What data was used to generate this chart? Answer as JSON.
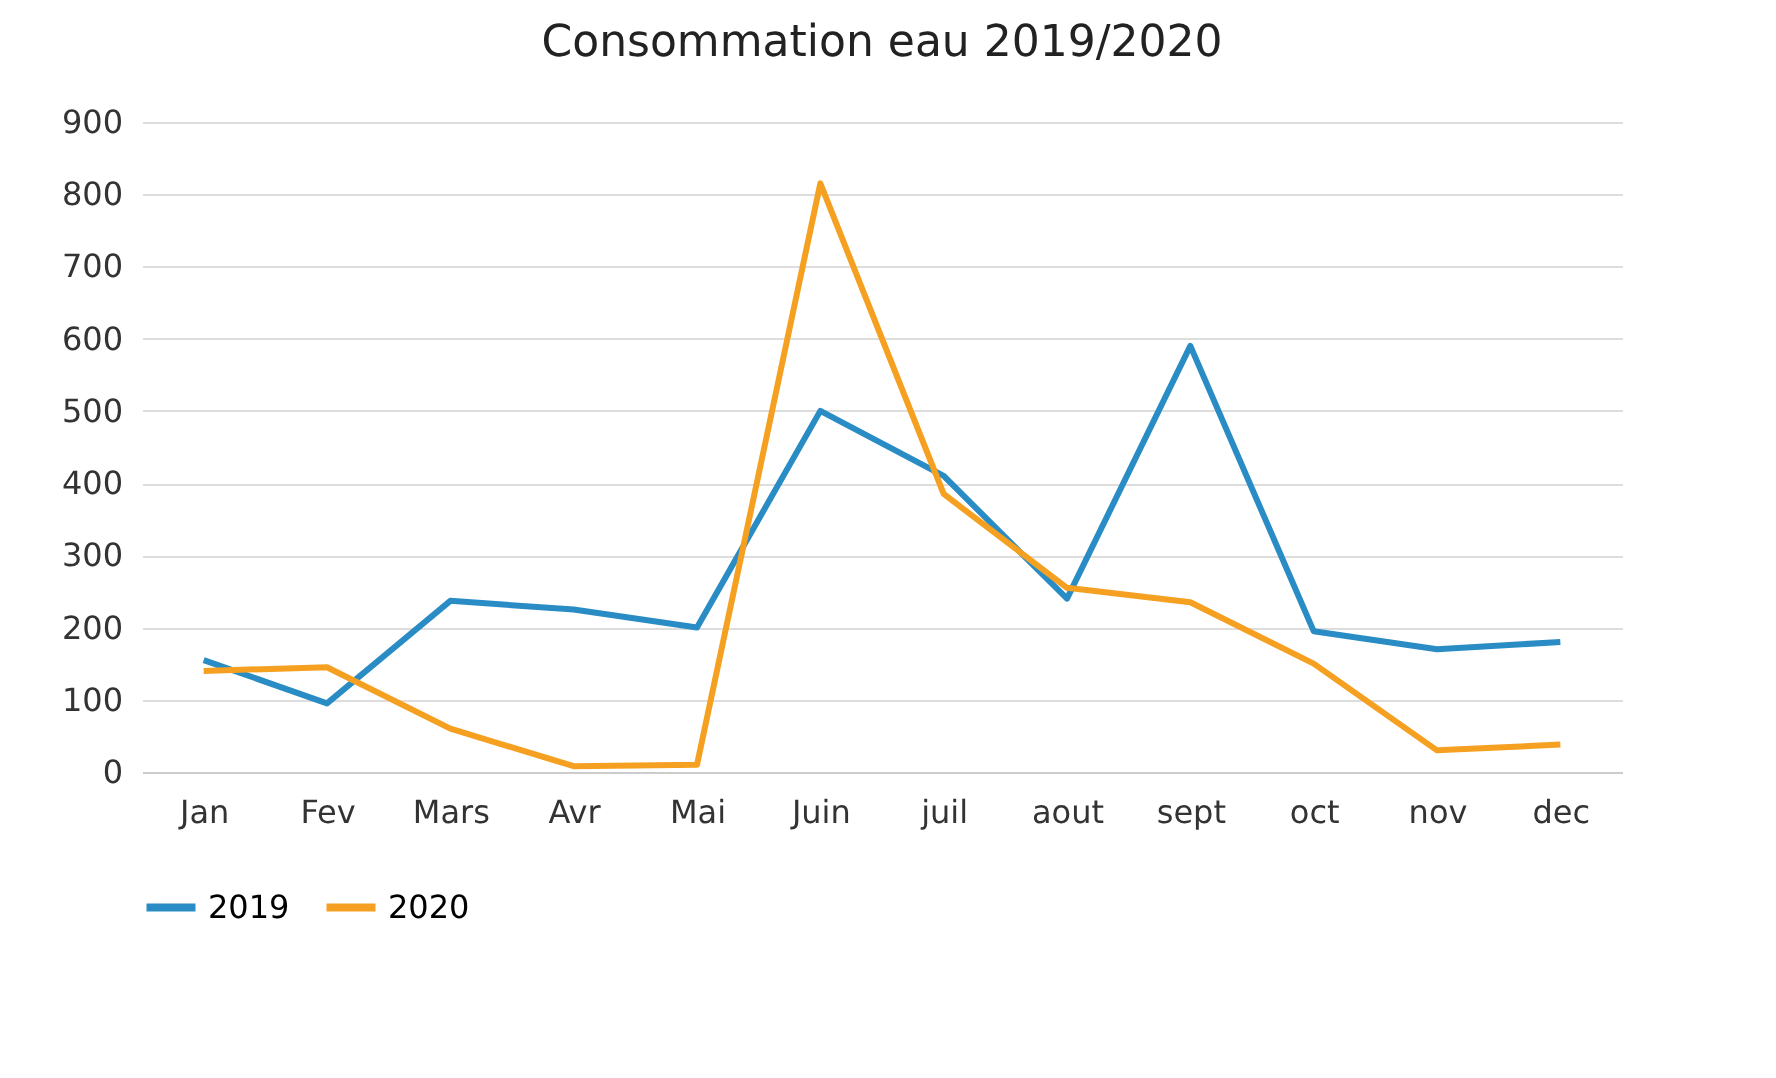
{
  "chart_data": {
    "type": "line",
    "title": "Consommation eau 2019/2020",
    "categories": [
      "Jan",
      "Fev",
      "Mars",
      "Avr",
      "Mai",
      "Juin",
      "juil",
      "aout",
      "sept",
      "oct",
      "nov",
      "dec"
    ],
    "series": [
      {
        "name": "2019",
        "color": "#2a8cc4",
        "values": [
          155,
          95,
          237,
          225,
          200,
          500,
          410,
          240,
          590,
          195,
          170,
          180
        ]
      },
      {
        "name": "2020",
        "color": "#f5a020",
        "values": [
          140,
          145,
          60,
          8,
          10,
          815,
          385,
          255,
          235,
          150,
          30,
          38
        ]
      }
    ],
    "ylim": [
      0,
      900
    ],
    "yticks": [
      0,
      100,
      200,
      300,
      400,
      500,
      600,
      700,
      800,
      900
    ],
    "grid": "y",
    "legend": "bottom",
    "marker": "none",
    "line_style": "solid"
  }
}
